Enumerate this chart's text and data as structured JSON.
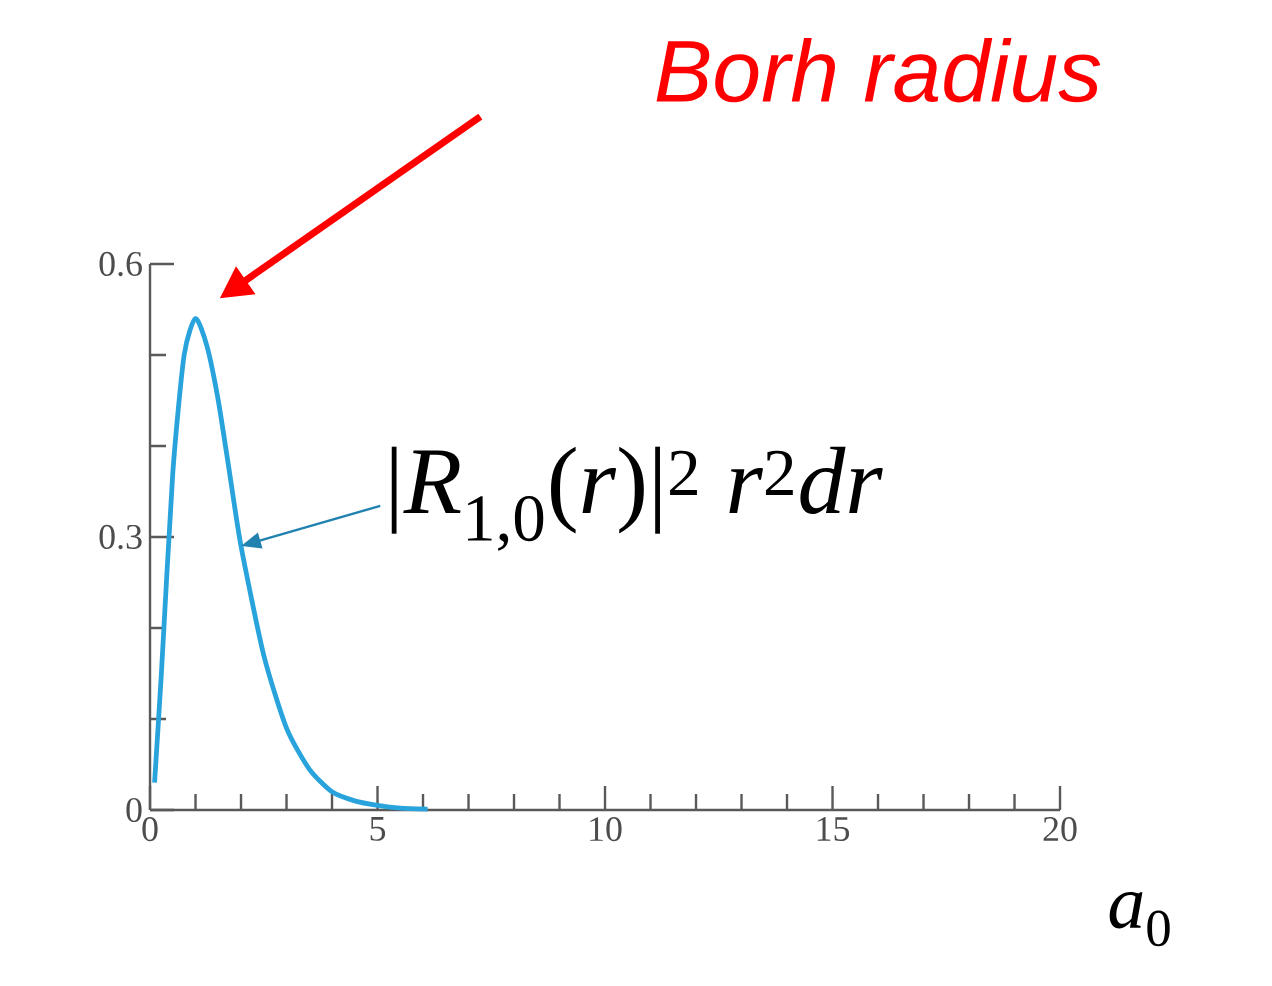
{
  "chart_data": {
    "type": "line",
    "xlabel": "*a*$_{0}$",
    "xlim": [
      0,
      20
    ],
    "xticks": [
      0,
      5,
      10,
      15,
      20
    ],
    "ylim": [
      0,
      0.6
    ],
    "yticks": [
      0,
      0.3,
      0.6
    ],
    "grid": false,
    "marker": "none",
    "line_style": "solid",
    "x": [
      0.1,
      0.25,
      0.5,
      0.75,
      1,
      1.25,
      1.5,
      1.75,
      2,
      2.5,
      3,
      3.5,
      4,
      4.5,
      5,
      5.5,
      6.1
    ],
    "series": [
      {
        "name": "|*R*$_{1,0}$(*r*)|$^{2}$ *r*$^{2}$*dr*",
        "color": "#29a3dc",
        "values": [
          0.03,
          0.15,
          0.37,
          0.5,
          0.54,
          0.51,
          0.45,
          0.37,
          0.29,
          0.17,
          0.09,
          0.045,
          0.02,
          0.01,
          0.005,
          0.002,
          0.001
        ]
      }
    ],
    "annotations": [
      "Borh radius"
    ]
  }
}
